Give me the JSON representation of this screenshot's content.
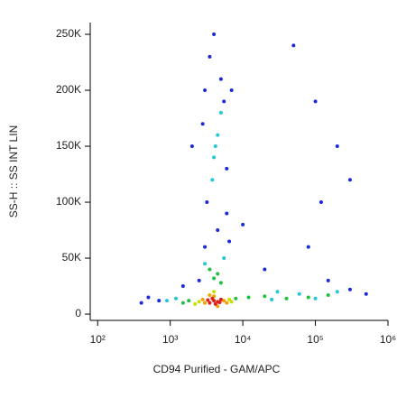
{
  "chart_data": {
    "type": "scatter",
    "x_label": "CD94 Purified - GAM/APC",
    "y_label": "SS-H :: SS INT LIN",
    "xscale": "log",
    "xlim": [
      79,
      1000000
    ],
    "ylim": [
      -5600,
      260500
    ],
    "xticks": [
      {
        "value": 100,
        "label": "10²"
      },
      {
        "value": 1000,
        "label": "10³"
      },
      {
        "value": 10000,
        "label": "10⁴"
      },
      {
        "value": 100000,
        "label": "10⁵"
      },
      {
        "value": 1000000,
        "label": "10⁶"
      }
    ],
    "yticks": [
      0,
      {
        "value": 50000,
        "label": "50K"
      },
      {
        "value": 100000,
        "label": "100K"
      },
      {
        "value": 150000,
        "label": "150K"
      },
      {
        "value": 200000,
        "label": "200K"
      },
      {
        "value": 250000,
        "label": "250K"
      }
    ],
    "series": [
      {
        "color": "#1a2ad8",
        "x": [
          4000,
          3500,
          5000,
          3000,
          5500,
          3200,
          6000,
          4500,
          3000,
          6500,
          2500,
          700,
          500,
          400,
          1500,
          300000,
          500000,
          150000,
          80000,
          120000,
          200000,
          100000,
          300000,
          50000,
          20000,
          2000,
          7000,
          6000,
          2800,
          10000
        ],
        "values": [
          250000,
          230000,
          210000,
          200000,
          190000,
          100000,
          90000,
          75000,
          60000,
          65000,
          30000,
          12000,
          15000,
          10000,
          25000,
          22000,
          18000,
          30000,
          60000,
          100000,
          150000,
          190000,
          120000,
          240000,
          40000,
          150000,
          200000,
          130000,
          170000,
          80000
        ]
      },
      {
        "color": "#20c8d8",
        "x": [
          25000,
          60000,
          100000,
          200000,
          3000,
          5500,
          4000,
          4500,
          3800,
          5000,
          4200,
          1200,
          900,
          30000
        ],
        "values": [
          13000,
          18000,
          14000,
          20000,
          45000,
          50000,
          140000,
          160000,
          120000,
          180000,
          150000,
          14000,
          12000,
          20000
        ]
      },
      {
        "color": "#20c040",
        "x": [
          1800,
          8000,
          12000,
          20000,
          4000,
          4500,
          3500,
          5000,
          1500,
          80000,
          150000,
          40000
        ],
        "values": [
          12000,
          14000,
          15000,
          16000,
          32000,
          36000,
          40000,
          28000,
          10000,
          15000,
          17000,
          14000
        ]
      },
      {
        "color": "#c8e000",
        "x": [
          2500,
          6500,
          4000,
          7000,
          2200
        ],
        "values": [
          11000,
          13000,
          20000,
          11000,
          9000
        ]
      },
      {
        "color": "#f5a000",
        "x": [
          3000,
          5500,
          4000,
          2800,
          6000,
          4500,
          3500
        ],
        "values": [
          10000,
          12000,
          16000,
          13000,
          10000,
          7000,
          17000
        ]
      },
      {
        "color": "#e0201a",
        "x": [
          3500,
          4000,
          4500,
          5000,
          3800,
          4200,
          4800,
          3300
        ],
        "values": [
          10000,
          12000,
          11000,
          13000,
          14000,
          9000,
          10500,
          12500
        ]
      }
    ]
  }
}
